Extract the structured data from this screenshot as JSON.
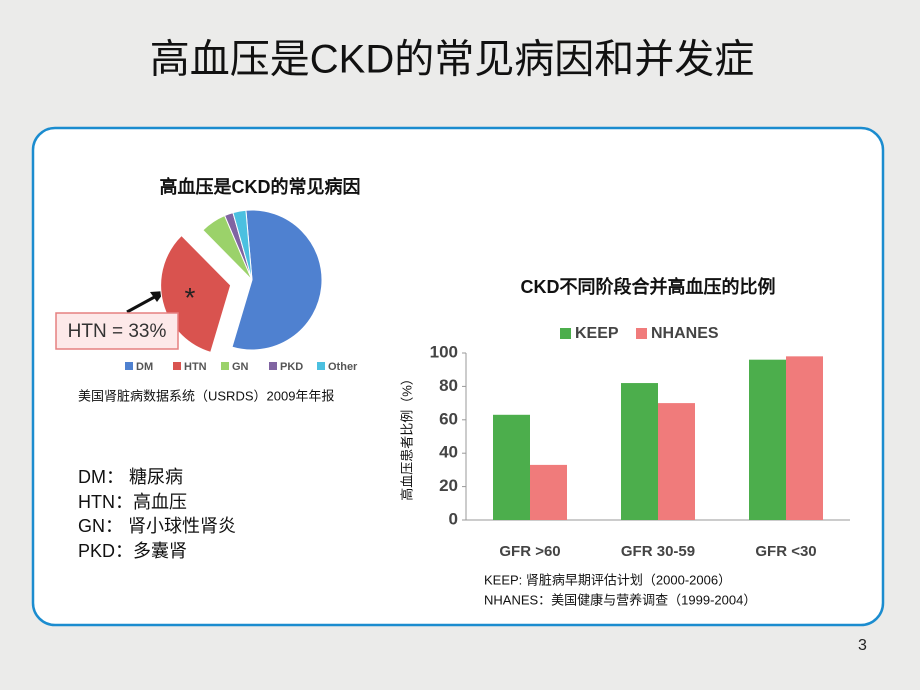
{
  "title": "高血压是CKD的常见病因和并发症",
  "page_number": "3",
  "pie_source": "美国肾脏病数据系统（USRDS）2009年年报",
  "abbreviations": [
    "DM： 糖尿病",
    "HTN：高血压",
    "GN：  肾小球性肾炎",
    "PKD：多囊肾"
  ],
  "bar_notes": [
    "KEEP: 肾脏病早期评估计划（2000-2006）",
    "NHANES：美国健康与营养调查（1999-2004）"
  ],
  "chart_data": [
    {
      "type": "pie",
      "title": "高血压是CKD的常见病因",
      "categories": [
        "DM",
        "HTN",
        "GN",
        "PKD",
        "Other"
      ],
      "values": [
        56,
        33,
        6,
        2,
        3
      ],
      "colors": [
        "#4f81d0",
        "#d9534f",
        "#9bd26a",
        "#8064a2",
        "#4bc0e0"
      ],
      "annotations": [
        "*",
        "HTN = 33%"
      ],
      "exploded": "HTN"
    },
    {
      "type": "bar",
      "title": "CKD不同阶段合并高血压的比例",
      "y_label": "高血压患者比例（%）",
      "categories": [
        "GFR >60",
        "GFR 30-59",
        "GFR <30"
      ],
      "series": [
        {
          "name": "KEEP",
          "color": "#4cae4c",
          "values": [
            63,
            82,
            96
          ]
        },
        {
          "name": "NHANES",
          "color": "#f07b7b",
          "values": [
            33,
            70,
            98
          ]
        }
      ],
      "ylim": [
        0,
        100
      ],
      "yticks": [
        0,
        20,
        40,
        60,
        80,
        100
      ],
      "grid": false
    }
  ]
}
